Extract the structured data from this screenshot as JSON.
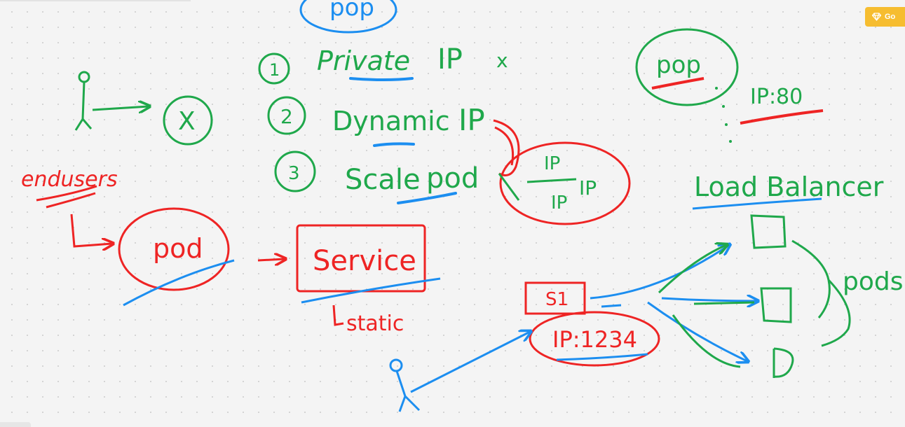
{
  "colors": {
    "green": "#1fa84b",
    "red": "#ee2424",
    "blue": "#1c8ef0",
    "background": "#f4f4f4",
    "upgrade": "#f6bd30"
  },
  "toolbar": {
    "upgrade_label": "Go",
    "upgrade_icon": "diamond-icon"
  },
  "notes": {
    "top_pod": "pop",
    "item1_num": "1",
    "item1_text": "Private",
    "item1_ip": "IP",
    "item1_mark": "x",
    "item2_num": "2",
    "item2_text": "Dynamic",
    "item2_ip": "IP",
    "item3_num": "3",
    "item3_text": "Scale",
    "item3_pod": "pod",
    "ip_fraction_top": "IP",
    "ip_fraction_bottom": "IP",
    "ip_fraction_side": "IP",
    "crossed_circle": "X",
    "endusers": "endusers",
    "left_pod": "pod",
    "service": "Service",
    "static": "static",
    "right_pod": "pop",
    "right_ip": "IP:80",
    "load_balancer": "Load Balancer",
    "service_short": "S1",
    "service_ip": "IP:1234",
    "pods": "pods"
  }
}
